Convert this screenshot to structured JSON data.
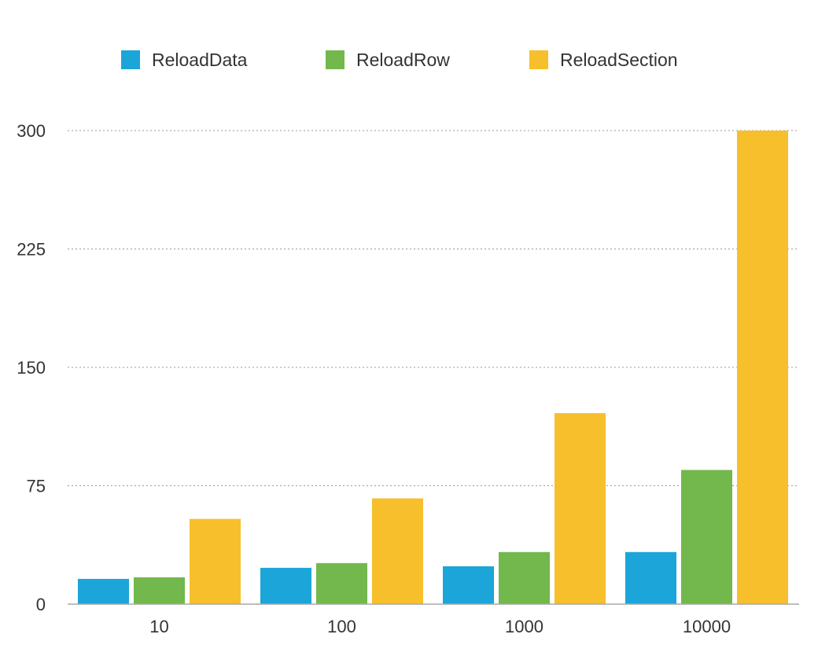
{
  "chart_data": {
    "type": "bar",
    "title": "",
    "xlabel": "",
    "ylabel": "",
    "categories": [
      "10",
      "100",
      "1000",
      "10000"
    ],
    "series": [
      {
        "name": "ReloadData",
        "color": "#1ba5d8",
        "values": [
          16,
          23,
          24,
          33
        ]
      },
      {
        "name": "ReloadRow",
        "color": "#72b84c",
        "values": [
          17,
          26,
          33,
          85
        ]
      },
      {
        "name": "ReloadSection",
        "color": "#f6bf2b",
        "values": [
          54,
          67,
          121,
          300
        ]
      }
    ],
    "ylim": [
      0,
      300
    ],
    "yticks": [
      "0",
      "75",
      "150",
      "225",
      "300"
    ],
    "ytick_values": [
      0,
      75,
      150,
      225,
      300
    ],
    "grid": true,
    "legend_position": "top"
  }
}
